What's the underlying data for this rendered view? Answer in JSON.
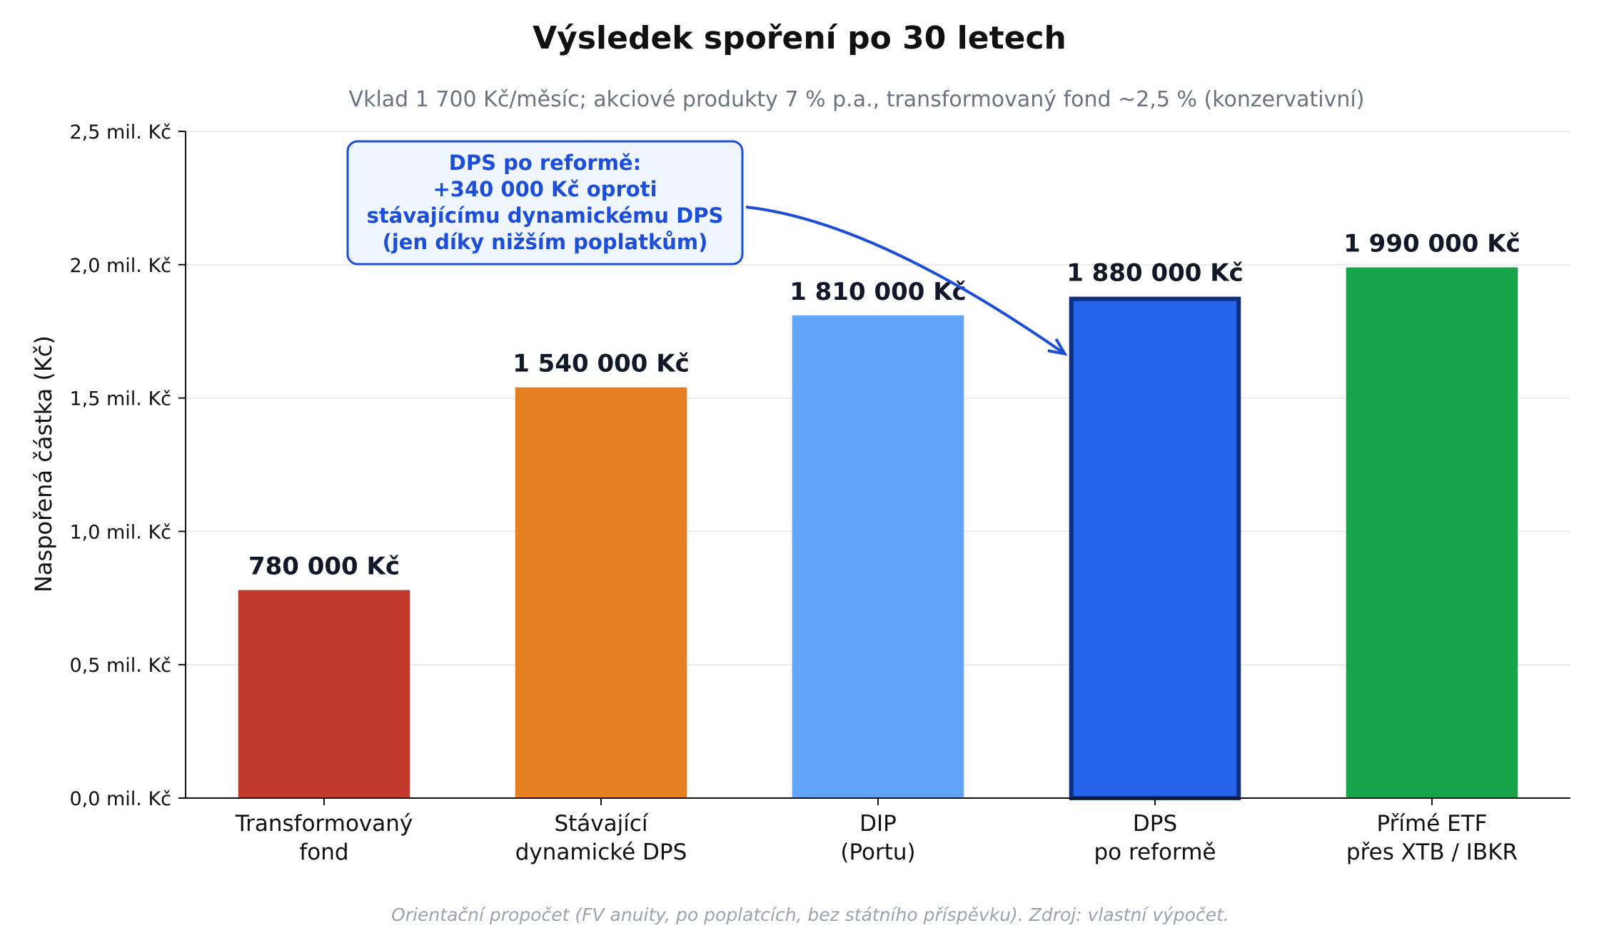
{
  "chart_data": {
    "type": "bar",
    "title": "Výsledek spoření po 30 letech",
    "subtitle": "Vklad 1 700 Kč/měsíc; akciové produkty 7 % p.a., transformovaný fond ~2,5 % (konzervativní)",
    "ylabel": "Naspořená částka (Kč)",
    "ylim": [
      0,
      2500000
    ],
    "yticks": [
      0,
      500000,
      1000000,
      1500000,
      2000000,
      2500000
    ],
    "ytick_labels": [
      "0,0 mil. Kč",
      "0,5 mil. Kč",
      "1,0 mil. Kč",
      "1,5 mil. Kč",
      "2,0 mil. Kč",
      "2,5 mil. Kč"
    ],
    "grid": "horizontal",
    "categories": [
      [
        "Transformovaný",
        "fond"
      ],
      [
        "Stávající",
        "dynamické DPS"
      ],
      [
        "DIP",
        "(Portu)"
      ],
      [
        "DPS",
        "po reformě"
      ],
      [
        "Přímé ETF",
        "přes XTB / IBKR"
      ]
    ],
    "values": [
      780000,
      1540000,
      1810000,
      1880000,
      1990000
    ],
    "value_labels": [
      "780 000 Kč",
      "1 540 000 Kč",
      "1 810 000 Kč",
      "1 880 000 Kč",
      "1 990 000 Kč"
    ],
    "colors": [
      "#c0392b",
      "#e67e22",
      "#60a5fa",
      "#2563eb",
      "#16a34a"
    ],
    "highlight_index": 3,
    "highlight_edge_color": "#0f2f7a",
    "annotation": {
      "lines": [
        "DPS po reformě:",
        "+340 000 Kč oproti",
        "stávajícímu dynamickému DPS",
        "(jen díky nižším poplatkům)"
      ],
      "color": "#1d4ed8",
      "box_fill": "#eff6ff",
      "target_index": 3
    },
    "footnote": "Orientační propočet (FV anuity, po poplatcích, bez státního příspěvku). Zdroj: vlastní výpočet."
  }
}
